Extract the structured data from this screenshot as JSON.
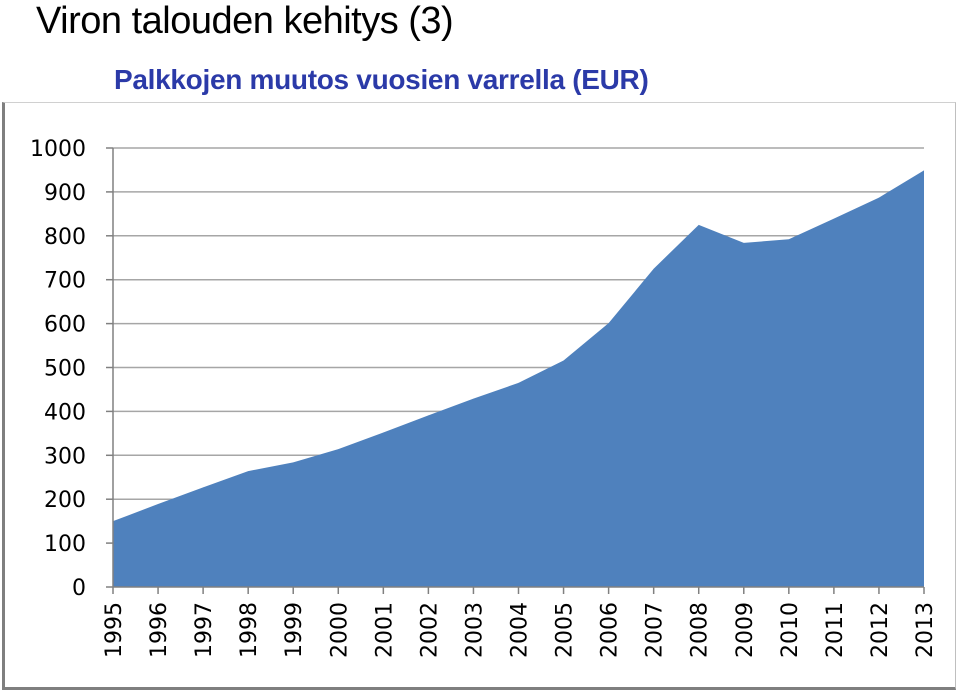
{
  "slide": {
    "title": "Viron talouden kehitys (3)",
    "subtitle": "Palkkojen muutos vuosien varrella (EUR)"
  },
  "chart_data": {
    "type": "area",
    "title": "Palkkojen muutos vuosien varrella (EUR)",
    "xlabel": "",
    "ylabel": "",
    "categories": [
      "1995",
      "1996",
      "1997",
      "1998",
      "1999",
      "2000",
      "2001",
      "2002",
      "2003",
      "2004",
      "2005",
      "2006",
      "2007",
      "2008",
      "2009",
      "2010",
      "2011",
      "2012",
      "2013"
    ],
    "series": [
      {
        "values": [
          150,
          189,
          227,
          264,
          284,
          314,
          352,
          391,
          429,
          465,
          516,
          601,
          725,
          825,
          784,
          792,
          839,
          887,
          949
        ]
      }
    ],
    "yticks": [
      0,
      100,
      200,
      300,
      400,
      500,
      600,
      700,
      800,
      900,
      1000
    ],
    "ylim": [
      0,
      1000
    ],
    "grid": true,
    "legend": "none",
    "colors": {
      "area": "#4f81bd",
      "grid": "#a6a6a6",
      "axis": "#808080"
    }
  }
}
